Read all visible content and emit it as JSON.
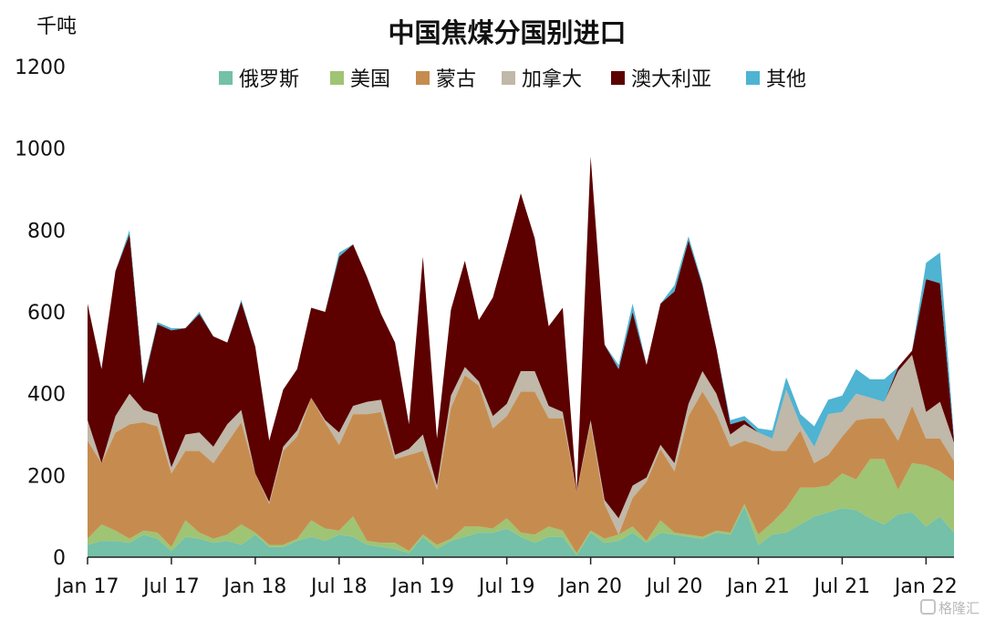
{
  "chart_data": {
    "type": "area",
    "stacked": true,
    "title": "中国焦煤分国别进口",
    "ylabel": "千吨",
    "xlabel": "",
    "ylim": [
      0,
      1200
    ],
    "yticks": [
      0,
      200,
      400,
      600,
      800,
      1000,
      1200
    ],
    "x_range": [
      "2017-01",
      "2022-03"
    ],
    "xticks": [
      {
        "label": "Jan 17",
        "date": "2017-01"
      },
      {
        "label": "Jul 17",
        "date": "2017-07"
      },
      {
        "label": "Jan 18",
        "date": "2018-01"
      },
      {
        "label": "Jul 18",
        "date": "2018-07"
      },
      {
        "label": "Jan 19",
        "date": "2019-01"
      },
      {
        "label": "Jul 19",
        "date": "2019-07"
      },
      {
        "label": "Jan 20",
        "date": "2020-01"
      },
      {
        "label": "Jul 20",
        "date": "2020-07"
      },
      {
        "label": "Jan 21",
        "date": "2021-01"
      },
      {
        "label": "Jul 21",
        "date": "2021-07"
      },
      {
        "label": "Jan 22",
        "date": "2022-01"
      }
    ],
    "grid": false,
    "legend_position": "top",
    "x": [
      "2017-01",
      "2017-02",
      "2017-03",
      "2017-04",
      "2017-05",
      "2017-06",
      "2017-07",
      "2017-08",
      "2017-09",
      "2017-10",
      "2017-11",
      "2017-12",
      "2018-01",
      "2018-02",
      "2018-03",
      "2018-04",
      "2018-05",
      "2018-06",
      "2018-07",
      "2018-08",
      "2018-09",
      "2018-10",
      "2018-11",
      "2018-12",
      "2019-01",
      "2019-02",
      "2019-03",
      "2019-04",
      "2019-05",
      "2019-06",
      "2019-07",
      "2019-08",
      "2019-09",
      "2019-10",
      "2019-11",
      "2019-12",
      "2020-01",
      "2020-02",
      "2020-03",
      "2020-04",
      "2020-05",
      "2020-06",
      "2020-07",
      "2020-08",
      "2020-09",
      "2020-10",
      "2020-11",
      "2020-12",
      "2021-01",
      "2021-02",
      "2021-03",
      "2021-04",
      "2021-05",
      "2021-06",
      "2021-07",
      "2021-08",
      "2021-09",
      "2021-10",
      "2021-11",
      "2021-12",
      "2022-01",
      "2022-02",
      "2022-03"
    ],
    "series": [
      {
        "name": "俄罗斯",
        "color": "#74c0a8",
        "values": [
          30,
          40,
          40,
          35,
          55,
          45,
          15,
          50,
          45,
          35,
          40,
          30,
          55,
          25,
          25,
          40,
          50,
          40,
          55,
          50,
          30,
          25,
          20,
          10,
          50,
          20,
          40,
          50,
          60,
          60,
          70,
          50,
          35,
          50,
          50,
          5,
          60,
          35,
          40,
          60,
          35,
          60,
          55,
          50,
          45,
          60,
          55,
          125,
          30,
          55,
          60,
          80,
          100,
          110,
          120,
          115,
          95,
          80,
          105,
          110,
          75,
          100,
          60
        ]
      },
      {
        "name": "美国",
        "color": "#9fc473",
        "values": [
          15,
          40,
          25,
          10,
          10,
          15,
          10,
          40,
          15,
          10,
          15,
          50,
          5,
          5,
          5,
          5,
          40,
          30,
          10,
          50,
          10,
          10,
          15,
          5,
          5,
          10,
          5,
          25,
          15,
          10,
          25,
          10,
          20,
          25,
          15,
          5,
          5,
          10,
          15,
          15,
          5,
          30,
          5,
          5,
          5,
          5,
          5,
          5,
          25,
          30,
          60,
          90,
          70,
          65,
          85,
          75,
          145,
          160,
          60,
          120,
          150,
          110,
          125
        ]
      },
      {
        "name": "蒙古",
        "color": "#c68c4f",
        "values": [
          240,
          150,
          240,
          280,
          265,
          260,
          180,
          170,
          200,
          185,
          225,
          250,
          145,
          100,
          230,
          250,
          300,
          260,
          210,
          250,
          310,
          320,
          205,
          235,
          205,
          135,
          320,
          370,
          345,
          245,
          250,
          345,
          350,
          265,
          275,
          150,
          260,
          85,
          0,
          70,
          145,
          175,
          150,
          290,
          355,
          285,
          210,
          155,
          220,
          175,
          140,
          140,
          60,
          75,
          90,
          145,
          100,
          100,
          120,
          140,
          65,
          80,
          50
        ]
      },
      {
        "name": "加拿大",
        "color": "#c0b8a8",
        "values": [
          50,
          0,
          40,
          75,
          30,
          30,
          15,
          40,
          45,
          40,
          45,
          30,
          0,
          5,
          10,
          15,
          0,
          5,
          30,
          20,
          30,
          30,
          10,
          15,
          40,
          10,
          30,
          20,
          10,
          30,
          30,
          50,
          50,
          30,
          15,
          0,
          10,
          10,
          40,
          30,
          10,
          10,
          20,
          30,
          50,
          50,
          30,
          40,
          30,
          30,
          150,
          15,
          40,
          100,
          60,
          65,
          50,
          40,
          170,
          125,
          65,
          90,
          45
        ]
      },
      {
        "name": "澳大利亚",
        "color": "#5c0000",
        "values": [
          285,
          230,
          355,
          390,
          65,
          220,
          335,
          260,
          290,
          270,
          200,
          265,
          310,
          150,
          140,
          150,
          220,
          265,
          430,
          395,
          305,
          210,
          275,
          60,
          435,
          115,
          210,
          260,
          150,
          290,
          385,
          435,
          325,
          195,
          255,
          0,
          645,
          380,
          365,
          425,
          275,
          345,
          420,
          400,
          210,
          110,
          25,
          10,
          0,
          0,
          0,
          0,
          0,
          0,
          0,
          0,
          0,
          0,
          10,
          10,
          325,
          290,
          5
        ]
      },
      {
        "name": "其他",
        "color": "#4fb3d2",
        "values": [
          0,
          0,
          0,
          10,
          5,
          5,
          5,
          0,
          5,
          0,
          0,
          5,
          0,
          0,
          0,
          0,
          0,
          0,
          10,
          0,
          0,
          0,
          0,
          0,
          0,
          0,
          0,
          0,
          0,
          0,
          0,
          0,
          0,
          0,
          0,
          0,
          0,
          0,
          10,
          20,
          0,
          0,
          15,
          10,
          5,
          0,
          10,
          10,
          10,
          20,
          30,
          25,
          50,
          35,
          40,
          60,
          45,
          55,
          0,
          0,
          40,
          75,
          10
        ]
      }
    ]
  },
  "watermark": "格隆汇"
}
